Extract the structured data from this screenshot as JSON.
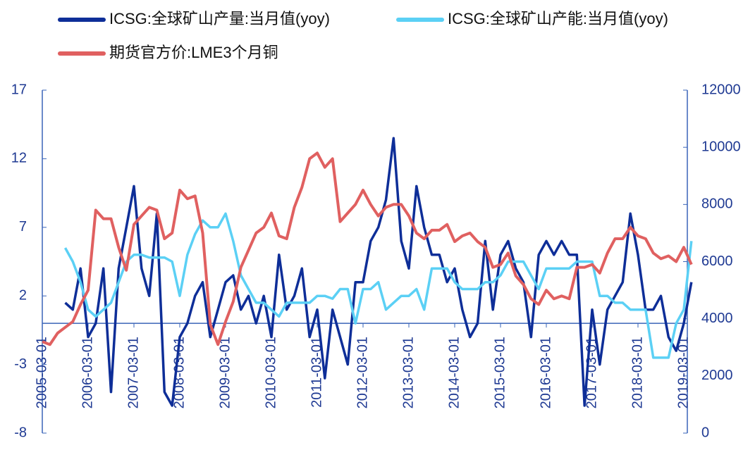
{
  "chart_data": {
    "type": "line",
    "x": [
      "2005-03-01",
      "2005-05-01",
      "2005-07-01",
      "2005-09-01",
      "2005-11-01",
      "2006-01-01",
      "2006-03-01",
      "2006-05-01",
      "2006-07-01",
      "2006-09-01",
      "2006-11-01",
      "2007-01-01",
      "2007-03-01",
      "2007-05-01",
      "2007-07-01",
      "2007-09-01",
      "2007-11-01",
      "2008-01-01",
      "2008-03-01",
      "2008-05-01",
      "2008-07-01",
      "2008-09-01",
      "2008-11-01",
      "2009-01-01",
      "2009-03-01",
      "2009-05-01",
      "2009-07-01",
      "2009-09-01",
      "2009-11-01",
      "2010-01-01",
      "2010-03-01",
      "2010-05-01",
      "2010-07-01",
      "2010-09-01",
      "2010-11-01",
      "2011-01-01",
      "2011-03-01",
      "2011-05-01",
      "2011-07-01",
      "2011-09-01",
      "2011-11-01",
      "2012-01-01",
      "2012-03-01",
      "2012-05-01",
      "2012-07-01",
      "2012-09-01",
      "2012-11-01",
      "2013-01-01",
      "2013-03-01",
      "2013-05-01",
      "2013-07-01",
      "2013-09-01",
      "2013-11-01",
      "2014-01-01",
      "2014-03-01",
      "2014-05-01",
      "2014-07-01",
      "2014-09-01",
      "2014-11-01",
      "2015-01-01",
      "2015-03-01",
      "2015-05-01",
      "2015-07-01",
      "2015-09-01",
      "2015-11-01",
      "2016-01-01",
      "2016-03-01",
      "2016-05-01",
      "2016-07-01",
      "2016-09-01",
      "2016-11-01",
      "2017-01-01",
      "2017-03-01",
      "2017-05-01",
      "2017-07-01",
      "2017-09-01",
      "2017-11-01",
      "2018-01-01",
      "2018-03-01",
      "2018-05-01",
      "2018-07-01",
      "2018-09-01",
      "2018-11-01",
      "2019-01-01",
      "2019-03-01",
      "2019-05-01"
    ],
    "xticks": [
      "2005-03-01",
      "2006-03-01",
      "2007-03-01",
      "2008-03-01",
      "2009-03-01",
      "2010-03-01",
      "2011-03-01",
      "2012-03-01",
      "2013-03-01",
      "2014-03-01",
      "2015-03-01",
      "2016-03-01",
      "2017-03-01",
      "2018-03-01",
      "2019-03-01"
    ],
    "ylim": [
      -8,
      17
    ],
    "yticks": [
      -8,
      -3,
      2,
      7,
      12,
      17
    ],
    "y2lim": [
      0,
      12000
    ],
    "y2ticks": [
      0,
      2000,
      4000,
      6000,
      8000,
      10000,
      12000
    ],
    "zero_line": true,
    "series": [
      {
        "name": "ICSG:全球矿山产量:当月值(yoy)",
        "color": "#0e2e98",
        "values": [
          null,
          null,
          null,
          1.5,
          1,
          4,
          -1,
          0,
          4,
          -5,
          4,
          7,
          10,
          4,
          2,
          8,
          -5,
          -6,
          -1,
          0,
          2,
          3,
          -1,
          1,
          3,
          3.5,
          1,
          2,
          0,
          2,
          -1,
          5,
          1,
          2,
          4,
          -1,
          1,
          -4,
          1,
          -1,
          -3,
          3,
          3,
          6,
          7,
          9,
          13.5,
          6,
          4,
          10,
          7,
          5,
          5,
          3,
          4,
          1,
          -1,
          0,
          6,
          1,
          5,
          6,
          4,
          3,
          -1,
          5,
          6,
          5,
          6,
          5,
          5,
          -6,
          1,
          -3,
          1,
          2,
          3,
          8,
          5,
          1,
          1,
          2,
          -1,
          -2,
          0,
          3
        ]
      },
      {
        "name": "ICSG:全球矿山产能:当月值(yoy)",
        "color": "#5bd0f5",
        "values": [
          null,
          null,
          null,
          5.5,
          4.5,
          3,
          1,
          0.5,
          1,
          1.5,
          3,
          4.5,
          5,
          5,
          4.8,
          4.8,
          4.8,
          4.5,
          2,
          5,
          6.5,
          7.5,
          7,
          7,
          8,
          6,
          3.5,
          2.5,
          1.5,
          1.5,
          1,
          0.5,
          1.5,
          1.5,
          1.5,
          1.5,
          2,
          2,
          1.8,
          2.5,
          2.5,
          0,
          2.5,
          2.5,
          3,
          1,
          1.5,
          2,
          2,
          2.5,
          1,
          4,
          4,
          4,
          3,
          2.5,
          2.5,
          2.5,
          3,
          3,
          3.5,
          4.5,
          4.5,
          4.5,
          3.5,
          2.5,
          4,
          4,
          4,
          4,
          4.5,
          4.5,
          4.5,
          2,
          2,
          1.5,
          1.5,
          1,
          1,
          1,
          -2.5,
          -2.5,
          -2.5,
          0,
          1,
          6
        ]
      },
      {
        "name": "期货官方价:LME3个月铜",
        "color": "#e06060",
        "axis": "y2",
        "values": [
          3200,
          3100,
          3500,
          3700,
          3900,
          4500,
          5000,
          7800,
          7500,
          7500,
          6500,
          5700,
          7300,
          7600,
          7900,
          7800,
          6800,
          7000,
          8500,
          8200,
          8300,
          7000,
          3800,
          3100,
          3900,
          4600,
          5800,
          6400,
          7000,
          7200,
          7700,
          6900,
          6800,
          7900,
          8600,
          9600,
          9800,
          9300,
          9600,
          7400,
          7700,
          8000,
          8500,
          8000,
          7600,
          7900,
          8000,
          8000,
          7600,
          7000,
          6800,
          7100,
          7100,
          7300,
          6700,
          6900,
          7000,
          6700,
          6500,
          5800,
          5900,
          6300,
          5500,
          5200,
          4700,
          4500,
          5000,
          4700,
          4800,
          4700,
          5800,
          5800,
          5900,
          5600,
          6300,
          6800,
          6800,
          7200,
          6900,
          6800,
          6300,
          6100,
          6200,
          6000,
          6500,
          5900
        ]
      }
    ]
  }
}
